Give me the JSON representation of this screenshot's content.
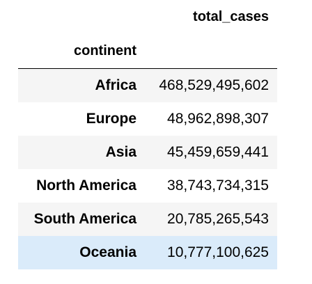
{
  "table": {
    "column_header": "total_cases",
    "index_name": "continent",
    "row_colors": {
      "odd": "#f5f5f5",
      "even": "#ffffff",
      "highlight": "#daebfa"
    },
    "rows": [
      {
        "continent": "Africa",
        "total_cases": "468,529,495,602"
      },
      {
        "continent": "Europe",
        "total_cases": "48,962,898,307"
      },
      {
        "continent": "Asia",
        "total_cases": "45,459,659,441"
      },
      {
        "continent": "North America",
        "total_cases": "38,743,734,315"
      },
      {
        "continent": "South America",
        "total_cases": "20,785,265,543"
      },
      {
        "continent": "Oceania",
        "total_cases": "10,777,100,625"
      }
    ]
  }
}
